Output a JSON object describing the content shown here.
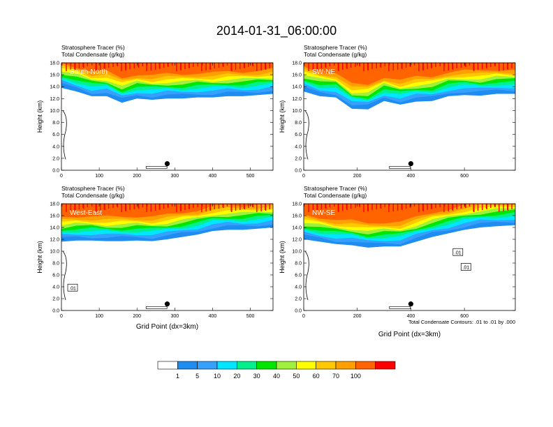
{
  "figure": {
    "title": "2014-01-31_06:00:00",
    "contour_note": "Total Condensate Contours: .01 to .01 by .000"
  },
  "colorbar": {
    "labels": [
      "1",
      "5",
      "10",
      "20",
      "30",
      "40",
      "50",
      "60",
      "70",
      "100"
    ],
    "colors": [
      "#ffffff",
      "#1e8cf0",
      "#36a0ff",
      "#00e6ff",
      "#00f08c",
      "#00e600",
      "#a0f03c",
      "#ffff00",
      "#ffc800",
      "#ffa000",
      "#ff6400",
      "#ff0000"
    ]
  },
  "chart_data": [
    {
      "type": "area",
      "panel_label": "South-North",
      "subtitle_left": "Stratosphere Tracer   (%)",
      "subtitle_left2": "Total Condensate   (g/kg)",
      "ylabel": "Height (km)",
      "xlabel": "",
      "xlim": [
        0,
        560
      ],
      "ylim": [
        0,
        18
      ],
      "xticks": [
        "0",
        "100",
        "200",
        "300",
        "400",
        "500"
      ],
      "yticks": [
        "0.0",
        "2.0",
        "4.0",
        "6.0",
        "8.0",
        "10.0",
        "12.0",
        "14.0",
        "16.0",
        "18.0"
      ],
      "marker_x": 280,
      "base_x": [
        0,
        40,
        80,
        120,
        160,
        200,
        240,
        280,
        320,
        360,
        400,
        440,
        480,
        520,
        560
      ],
      "base_y": [
        13.8,
        13.2,
        12.4,
        12.4,
        11.3,
        12.0,
        11.8,
        12.0,
        12.0,
        12.2,
        12.2,
        12.4,
        12.4,
        12.6,
        12.8
      ],
      "contour_labels": []
    },
    {
      "type": "area",
      "panel_label": "SW-NE",
      "subtitle_left": "Stratosphere Tracer   (%)",
      "subtitle_left2": "Total Condensate   (g/kg)",
      "ylabel": "Height (km)",
      "xlabel": "",
      "xlim": [
        0,
        790
      ],
      "ylim": [
        0,
        18
      ],
      "xticks": [
        "0",
        "200",
        "400",
        "600"
      ],
      "yticks": [
        "0.0",
        "2.0",
        "4.0",
        "6.0",
        "8.0",
        "10.0",
        "12.0",
        "14.0",
        "16.0",
        "18.0"
      ],
      "marker_x": 400,
      "base_x": [
        0,
        60,
        120,
        180,
        240,
        300,
        360,
        420,
        480,
        540,
        600,
        660,
        720,
        790
      ],
      "base_y": [
        13.2,
        12.4,
        12.2,
        10.3,
        10.2,
        11.6,
        11.0,
        11.5,
        11.6,
        12.4,
        12.6,
        12.5,
        12.8,
        12.8
      ],
      "contour_labels": []
    },
    {
      "type": "area",
      "panel_label": "West-East",
      "subtitle_left": "Stratosphere Tracer   (%)",
      "subtitle_left2": "Total Condensate   (g/kg)",
      "ylabel": "Height (km)",
      "xlabel": "Grid Point (dx=3km)",
      "xlim": [
        0,
        560
      ],
      "ylim": [
        0,
        18
      ],
      "xticks": [
        "0",
        "100",
        "200",
        "300",
        "400",
        "500"
      ],
      "yticks": [
        "0.0",
        "2.0",
        "4.0",
        "6.0",
        "8.0",
        "10.0",
        "12.0",
        "14.0",
        "16.0",
        "18.0"
      ],
      "marker_x": 280,
      "base_x": [
        0,
        40,
        80,
        120,
        160,
        200,
        240,
        280,
        320,
        360,
        400,
        440,
        480,
        520,
        560
      ],
      "base_y": [
        11.6,
        11.8,
        11.8,
        11.7,
        11.7,
        11.8,
        11.7,
        12.0,
        12.4,
        12.8,
        13.4,
        13.6,
        13.6,
        13.8,
        14.0
      ],
      "contour_labels": [
        ".01"
      ]
    },
    {
      "type": "area",
      "panel_label": "NW-SE",
      "subtitle_left": "Stratosphere Tracer   (%)",
      "subtitle_left2": "Total Condensate   (g/kg)",
      "ylabel": "Height (km)",
      "xlabel": "Grid Point (dx=3km)",
      "xlim": [
        0,
        790
      ],
      "ylim": [
        0,
        18
      ],
      "xticks": [
        "0",
        "200",
        "400",
        "600"
      ],
      "yticks": [
        "0.0",
        "2.0",
        "4.0",
        "6.0",
        "8.0",
        "10.0",
        "12.0",
        "14.0",
        "16.0",
        "18.0"
      ],
      "marker_x": 400,
      "base_x": [
        0,
        60,
        120,
        180,
        240,
        300,
        360,
        420,
        480,
        540,
        600,
        660,
        720,
        790
      ],
      "base_y": [
        12.0,
        11.6,
        11.2,
        11.0,
        10.6,
        10.8,
        10.8,
        11.6,
        12.4,
        13.0,
        13.6,
        14.0,
        14.2,
        14.4
      ],
      "contour_labels": [
        ".01",
        ".01"
      ]
    }
  ]
}
